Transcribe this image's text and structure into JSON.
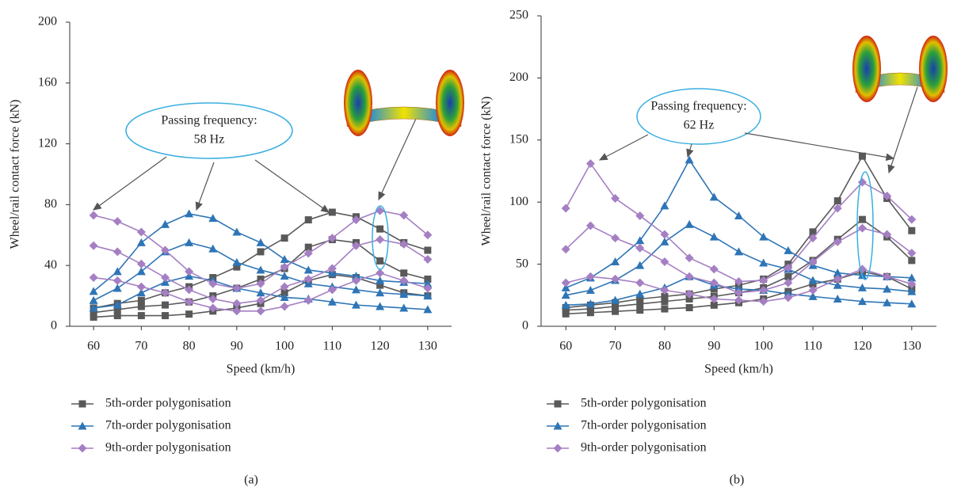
{
  "chart_data": [
    {
      "type": "line",
      "caption": "(a)",
      "x_label": "Speed (km/h)",
      "y_label": "Wheel/rail contact force (kN)",
      "annotation": {
        "title": "Passing frequency:",
        "value": "58 Hz"
      },
      "x": [
        60,
        65,
        70,
        75,
        80,
        85,
        90,
        95,
        100,
        105,
        110,
        115,
        120,
        125,
        130
      ],
      "xlim": [
        55,
        135
      ],
      "xticks": [
        60,
        70,
        80,
        90,
        100,
        110,
        120,
        130
      ],
      "ylim": [
        0,
        200
      ],
      "yticks": [
        0,
        40,
        80,
        120,
        160,
        200
      ],
      "series": [
        {
          "name": "5th-order polygonisation",
          "color": "#595959",
          "marker": "square",
          "values": [
            [
              12,
              15,
              17,
              22,
              26,
              32,
              39,
              49,
              58,
              70,
              75,
              72,
              64,
              55,
              50
            ],
            [
              9,
              11,
              13,
              14,
              16,
              20,
              25,
              31,
              38,
              52,
              57,
              55,
              43,
              35,
              31
            ],
            [
              6,
              7,
              7,
              7,
              8,
              10,
              12,
              15,
              22,
              30,
              34,
              32,
              27,
              22,
              20
            ]
          ]
        },
        {
          "name": "7th-order polygonisation",
          "color": "#2e75b6",
          "marker": "triangle",
          "values": [
            [
              23,
              36,
              55,
              67,
              74,
              71,
              62,
              55,
              44,
              37,
              35,
              33,
              30,
              29,
              28
            ],
            [
              17,
              25,
              36,
              49,
              55,
              51,
              42,
              37,
              33,
              28,
              26,
              24,
              22,
              21,
              20
            ],
            [
              12,
              14,
              22,
              29,
              33,
              30,
              25,
              22,
              19,
              18,
              16,
              14,
              13,
              12,
              11
            ]
          ]
        },
        {
          "name": "9th-order polygonisation",
          "color": "#a57fc3",
          "marker": "diamond",
          "values": [
            [
              73,
              69,
              62,
              50,
              36,
              28,
              25,
              28,
              39,
              48,
              58,
              70,
              76,
              73,
              60
            ],
            [
              53,
              49,
              41,
              32,
              24,
              18,
              15,
              17,
              26,
              31,
              38,
              53,
              57,
              54,
              44
            ],
            [
              32,
              30,
              26,
              22,
              16,
              12,
              10,
              10,
              13,
              17,
              24,
              30,
              35,
              30,
              25
            ]
          ]
        }
      ]
    },
    {
      "type": "line",
      "caption": "(b)",
      "x_label": "Speed (km/h)",
      "y_label": "Wheel/rail contact force (kN)",
      "annotation": {
        "title": "Passing frequency:",
        "value": "62 Hz"
      },
      "x": [
        60,
        65,
        70,
        75,
        80,
        85,
        90,
        95,
        100,
        105,
        110,
        115,
        120,
        125,
        130
      ],
      "xlim": [
        55,
        135
      ],
      "xticks": [
        60,
        70,
        80,
        90,
        100,
        110,
        120,
        130
      ],
      "ylim": [
        0,
        250
      ],
      "yticks": [
        0,
        50,
        100,
        150,
        200,
        250
      ],
      "series": [
        {
          "name": "5th-order polygonisation",
          "color": "#595959",
          "marker": "square",
          "values": [
            [
              15,
              17,
              19,
              22,
              24,
              26,
              30,
              33,
              38,
              50,
              76,
              101,
              137,
              103,
              77
            ],
            [
              13,
              14,
              16,
              18,
              20,
              22,
              24,
              27,
              31,
              40,
              53,
              70,
              86,
              72,
              53
            ],
            [
              10,
              11,
              12,
              13,
              14,
              15,
              17,
              19,
              22,
              28,
              34,
              38,
              44,
              40,
              30
            ]
          ]
        },
        {
          "name": "7th-order polygonisation",
          "color": "#2e75b6",
          "marker": "triangle",
          "values": [
            [
              31,
              39,
              52,
              69,
              97,
              134,
              104,
              89,
              72,
              61,
              49,
              43,
              41,
              40,
              39
            ],
            [
              25,
              29,
              37,
              49,
              68,
              82,
              72,
              60,
              51,
              46,
              37,
              33,
              31,
              30,
              28
            ],
            [
              17,
              18,
              21,
              26,
              31,
              40,
              33,
              30,
              29,
              26,
              24,
              22,
              20,
              19,
              18
            ]
          ]
        },
        {
          "name": "9th-order polygonisation",
          "color": "#a57fc3",
          "marker": "diamond",
          "values": [
            [
              95,
              131,
              103,
              89,
              74,
              55,
              46,
              36,
              37,
              47,
              71,
              95,
              116,
              105,
              86
            ],
            [
              62,
              81,
              71,
              63,
              52,
              40,
              35,
              27,
              29,
              35,
              52,
              68,
              79,
              74,
              59
            ],
            [
              35,
              40,
              38,
              35,
              29,
              26,
              22,
              21,
              20,
              23,
              29,
              38,
              46,
              40,
              34
            ]
          ]
        }
      ]
    }
  ]
}
